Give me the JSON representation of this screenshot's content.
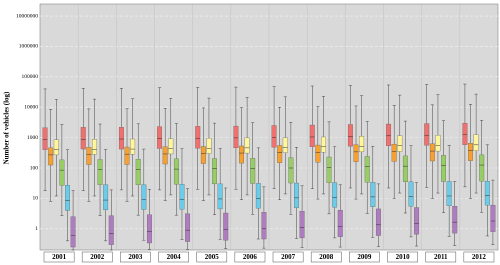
{
  "chart_data": {
    "type": "box",
    "y_label": "Number of vehicles (log)",
    "yscale": "log",
    "ylim": [
      0.2,
      25000000
    ],
    "yticks": [
      1,
      10,
      100,
      1000,
      10000,
      100000,
      1000000,
      10000000
    ],
    "grid": true,
    "categories": [
      "2001",
      "2002",
      "2003",
      "2004",
      "2005",
      "2006",
      "2007",
      "2008",
      "2009",
      "2010",
      "2011",
      "2012"
    ],
    "series": [
      {
        "color": "#f07070",
        "whislo": [
          18,
          18,
          19,
          19,
          20,
          20,
          21,
          21,
          22,
          22,
          23,
          24
        ],
        "q1": [
          400,
          420,
          420,
          440,
          450,
          460,
          480,
          500,
          520,
          540,
          560,
          580
        ],
        "median": [
          850,
          880,
          900,
          920,
          950,
          980,
          1000,
          1050,
          1100,
          1150,
          1200,
          1250
        ],
        "q3": [
          2100,
          2200,
          2200,
          2300,
          2350,
          2400,
          2500,
          2600,
          2700,
          2800,
          2900,
          3000
        ],
        "whishi": [
          40000,
          42000,
          42000,
          44000,
          45000,
          46000,
          48000,
          50000,
          52000,
          54000,
          56000,
          58000
        ]
      },
      {
        "color": "#f5a030",
        "whislo": [
          8,
          8,
          8,
          8.5,
          8.5,
          9,
          9,
          9.5,
          9.5,
          10,
          10,
          10
        ],
        "q1": [
          125,
          130,
          130,
          135,
          140,
          145,
          150,
          155,
          160,
          165,
          170,
          175
        ],
        "median": [
          270,
          280,
          285,
          290,
          300,
          310,
          320,
          330,
          340,
          350,
          360,
          370
        ],
        "q3": [
          460,
          480,
          490,
          500,
          510,
          530,
          550,
          570,
          590,
          610,
          630,
          650
        ],
        "whishi": [
          8500,
          8800,
          9000,
          9200,
          9500,
          9800,
          10000,
          10500,
          11000,
          11500,
          12000,
          12500
        ]
      },
      {
        "color": "#fff59a",
        "whislo": [
          12,
          12,
          12,
          13,
          13,
          13,
          14,
          14,
          14,
          15,
          15,
          15
        ],
        "q1": [
          270,
          280,
          285,
          290,
          300,
          310,
          320,
          330,
          340,
          350,
          360,
          370
        ],
        "median": [
          400,
          410,
          420,
          430,
          440,
          460,
          480,
          500,
          520,
          540,
          560,
          580
        ],
        "q3": [
          850,
          880,
          900,
          920,
          950,
          980,
          1000,
          1050,
          1100,
          1150,
          1200,
          1250
        ],
        "whishi": [
          18000,
          18500,
          19000,
          19500,
          20000,
          21000,
          22000,
          23000,
          24000,
          25000,
          26000,
          27000
        ]
      },
      {
        "color": "#98cc66",
        "whislo": [
          2.7,
          2.7,
          2.8,
          2.8,
          2.9,
          3,
          3,
          3.1,
          3.2,
          3.3,
          3.4,
          3.5
        ],
        "q1": [
          27,
          28,
          28,
          29,
          30,
          31,
          32,
          33,
          34,
          35,
          36,
          37
        ],
        "median": [
          85,
          88,
          90,
          92,
          95,
          98,
          100,
          105,
          110,
          115,
          120,
          125
        ],
        "q3": [
          185,
          190,
          195,
          200,
          205,
          210,
          220,
          230,
          240,
          250,
          260,
          270
        ],
        "whishi": [
          2700,
          2800,
          2850,
          2900,
          3000,
          3100,
          3200,
          3300,
          3400,
          3500,
          3600,
          3700
        ]
      },
      {
        "color": "#6ccbe8",
        "whislo": [
          0.4,
          0.4,
          0.42,
          0.44,
          0.45,
          0.46,
          0.48,
          0.5,
          0.52,
          0.54,
          0.56,
          0.58
        ],
        "q1": [
          4,
          4.2,
          4.3,
          4.4,
          4.5,
          4.7,
          4.9,
          5.1,
          5.3,
          5.5,
          5.7,
          6
        ],
        "median": [
          8.5,
          8.8,
          9,
          9.3,
          9.6,
          10,
          10.4,
          10.8,
          11.2,
          11.6,
          12,
          12.5
        ],
        "q3": [
          27,
          28,
          28,
          29,
          30,
          31,
          32,
          33,
          34,
          35,
          36,
          37
        ],
        "whishi": [
          400,
          410,
          420,
          430,
          440,
          460,
          480,
          500,
          520,
          540,
          560,
          580
        ]
      },
      {
        "color": "#b07cc0",
        "whislo": [
          0.2,
          0.2,
          0.21,
          0.21,
          0.22,
          0.23,
          0.24,
          0.25,
          0.26,
          0.27,
          0.28,
          0.3
        ],
        "q1": [
          0.25,
          0.3,
          0.34,
          0.38,
          0.42,
          0.46,
          0.5,
          0.55,
          0.6,
          0.66,
          0.72,
          0.8
        ],
        "median": [
          0.6,
          0.7,
          0.8,
          0.9,
          0.95,
          1,
          1.1,
          1.2,
          1.35,
          1.5,
          1.65,
          1.8
        ],
        "q3": [
          2.5,
          2.7,
          2.9,
          3.1,
          3.3,
          3.5,
          3.8,
          4.1,
          4.5,
          5,
          5.5,
          6
        ],
        "whishi": [
          18,
          19,
          20,
          21,
          22,
          24,
          26,
          28,
          30,
          33,
          36,
          40
        ]
      }
    ]
  }
}
